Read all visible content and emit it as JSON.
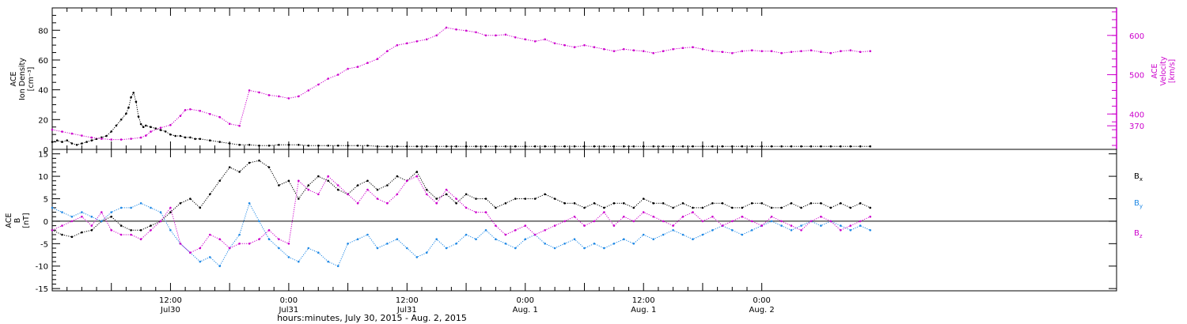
{
  "chart_data": [
    {
      "type": "scatter",
      "panel": "top",
      "ylabel_lines": [
        "ACE",
        "Ion Density",
        "[cm⁻³]"
      ],
      "y2label_lines": [
        "ACE",
        "Velocity",
        "[km/s]"
      ],
      "ylim": [
        0,
        95
      ],
      "y2lim": [
        310,
        670
      ],
      "yticks": [
        0,
        20,
        40,
        60,
        80
      ],
      "y2ticks": [
        400,
        500,
        600
      ],
      "y2ticklabels": [
        "400",
        "500",
        "600"
      ],
      "yticklabels": [
        "0",
        "20",
        "40",
        "60",
        "80"
      ],
      "y2ticks_extra": [
        {
          "value": 370,
          "label": "370"
        }
      ],
      "colors": {
        "density": "#000000",
        "velocity": "#cc00cc"
      },
      "series": [
        {
          "name": "",
          "axis": "left",
          "color": "#000000",
          "x": [
            0,
            1,
            2,
            3,
            4,
            5,
            6,
            7,
            8,
            9,
            10,
            11,
            12,
            13,
            14,
            15,
            15.5,
            16,
            16.5,
            17,
            17.5,
            18,
            18.5,
            19,
            20,
            21,
            22,
            23,
            24,
            25,
            26,
            27,
            28,
            29,
            30,
            32,
            34,
            36,
            38,
            40,
            42,
            44,
            46,
            48,
            50,
            52,
            54,
            56,
            58,
            60,
            62,
            64,
            66,
            68,
            70,
            72,
            74,
            76,
            78,
            80,
            82,
            84,
            86,
            88,
            90,
            92,
            94,
            96,
            98,
            100,
            102,
            104,
            106,
            108,
            110,
            112,
            114,
            116,
            118,
            120,
            122,
            124,
            126,
            128,
            130,
            132,
            134,
            136,
            138,
            140,
            142,
            144,
            146,
            148,
            150,
            152,
            154,
            156,
            158,
            160,
            162,
            164,
            166
          ],
          "y": [
            5,
            6,
            5,
            6,
            4,
            3,
            4,
            5,
            6,
            7,
            8,
            9,
            12,
            16,
            20,
            24,
            28,
            35,
            38,
            32,
            22,
            17,
            15,
            16,
            15,
            14,
            13,
            12,
            10,
            9,
            9,
            8,
            8,
            7,
            7,
            6,
            5,
            4,
            3,
            3,
            2.5,
            2.5,
            3,
            3,
            3,
            2.5,
            2.5,
            2.5,
            2.5,
            2.5,
            2.5,
            2.5,
            2,
            2,
            2,
            2,
            2,
            2,
            2,
            2,
            2,
            2,
            2,
            2,
            2,
            2,
            2,
            2,
            2,
            2,
            2,
            2,
            2,
            2,
            2,
            2,
            2,
            2,
            2,
            2,
            2,
            2,
            2,
            2,
            2,
            2,
            2,
            2,
            2,
            2,
            2,
            2,
            2,
            2,
            2,
            2,
            2,
            2,
            2,
            2,
            2,
            2,
            2
          ]
        },
        {
          "name": "",
          "axis": "right",
          "color": "#cc00cc",
          "x": [
            0,
            2,
            4,
            6,
            8,
            10,
            12,
            14,
            16,
            18,
            19,
            20,
            22,
            24,
            26,
            27,
            28,
            30,
            32,
            34,
            36,
            38,
            40,
            42,
            44,
            46,
            48,
            50,
            52,
            54,
            56,
            58,
            60,
            62,
            64,
            66,
            68,
            70,
            72,
            74,
            76,
            78,
            80,
            82,
            84,
            86,
            88,
            90,
            92,
            94,
            96,
            98,
            100,
            102,
            104,
            106,
            108,
            110,
            112,
            114,
            116,
            118,
            120,
            122,
            124,
            126,
            128,
            130,
            132,
            134,
            136,
            138,
            140,
            142,
            144,
            146,
            148,
            150,
            152,
            154,
            156,
            158,
            160,
            162,
            164,
            166
          ],
          "y": [
            360,
            355,
            350,
            345,
            340,
            337,
            335,
            335,
            337,
            340,
            345,
            355,
            365,
            372,
            395,
            410,
            412,
            408,
            400,
            392,
            375,
            370,
            460,
            455,
            448,
            445,
            440,
            445,
            460,
            475,
            490,
            500,
            515,
            520,
            530,
            540,
            560,
            575,
            580,
            585,
            590,
            600,
            620,
            615,
            612,
            608,
            600,
            600,
            602,
            595,
            590,
            585,
            590,
            580,
            575,
            570,
            575,
            570,
            565,
            560,
            565,
            562,
            560,
            555,
            560,
            565,
            568,
            570,
            565,
            560,
            558,
            555,
            560,
            562,
            560,
            560,
            555,
            558,
            560,
            562,
            558,
            555,
            560,
            562,
            558,
            560
          ]
        }
      ]
    },
    {
      "type": "scatter",
      "panel": "bottom",
      "ylabel_lines": [
        "ACE",
        "B",
        "[nT]"
      ],
      "ylim": [
        -15.5,
        16
      ],
      "yticks": [
        -15,
        -10,
        -5,
        0,
        5,
        10,
        15
      ],
      "yticklabels": [
        "-15",
        "-10",
        "-5",
        "0",
        "5",
        "10",
        "15"
      ],
      "zero_line": 0,
      "legend": {
        "position": "right",
        "entries": [
          {
            "main": "B",
            "sub": "x",
            "color": "#000000"
          },
          {
            "main": "B",
            "sub": "y",
            "color": "#1e88e5"
          },
          {
            "main": "B",
            "sub": "z",
            "color": "#cc00cc"
          }
        ]
      },
      "series": [
        {
          "name": "Bx",
          "color": "#000000",
          "x": [
            0,
            2,
            4,
            6,
            8,
            10,
            12,
            14,
            16,
            18,
            20,
            22,
            24,
            26,
            28,
            30,
            32,
            34,
            36,
            38,
            40,
            42,
            44,
            46,
            48,
            50,
            52,
            54,
            56,
            58,
            60,
            62,
            64,
            66,
            68,
            70,
            72,
            74,
            76,
            78,
            80,
            82,
            84,
            86,
            88,
            90,
            92,
            94,
            96,
            98,
            100,
            102,
            104,
            106,
            108,
            110,
            112,
            114,
            116,
            118,
            120,
            122,
            124,
            126,
            128,
            130,
            132,
            134,
            136,
            138,
            140,
            142,
            144,
            146,
            148,
            150,
            152,
            154,
            156,
            158,
            160,
            162,
            164,
            166
          ],
          "y": [
            -2,
            -3,
            -3.5,
            -2.5,
            -2,
            0,
            1,
            -1,
            -2,
            -2,
            -1,
            0,
            2,
            4,
            5,
            3,
            6,
            9,
            12,
            11,
            13,
            13.5,
            12,
            8,
            9,
            5,
            8,
            10,
            9,
            7,
            6,
            8,
            9,
            7,
            8,
            10,
            9,
            11,
            7,
            5,
            6,
            4,
            6,
            5,
            5,
            3,
            4,
            5,
            5,
            5,
            6,
            5,
            4,
            4,
            3,
            4,
            3,
            4,
            4,
            3,
            5,
            4,
            4,
            3,
            4,
            3,
            3,
            4,
            4,
            3,
            3,
            4,
            4,
            3,
            3,
            4,
            3,
            4,
            4,
            3,
            4,
            3,
            4,
            3
          ]
        },
        {
          "name": "By",
          "color": "#1e88e5",
          "x": [
            0,
            2,
            4,
            6,
            8,
            10,
            12,
            14,
            16,
            18,
            20,
            22,
            24,
            26,
            28,
            30,
            32,
            34,
            36,
            38,
            40,
            42,
            44,
            46,
            48,
            50,
            52,
            54,
            56,
            58,
            60,
            62,
            64,
            66,
            68,
            70,
            72,
            74,
            76,
            78,
            80,
            82,
            84,
            86,
            88,
            90,
            92,
            94,
            96,
            98,
            100,
            102,
            104,
            106,
            108,
            110,
            112,
            114,
            116,
            118,
            120,
            122,
            124,
            126,
            128,
            130,
            132,
            134,
            136,
            138,
            140,
            142,
            144,
            146,
            148,
            150,
            152,
            154,
            156,
            158,
            160,
            162,
            164,
            166
          ],
          "y": [
            3,
            2,
            1,
            2,
            1,
            0,
            2,
            3,
            3,
            4,
            3,
            2,
            -2,
            -5,
            -7,
            -9,
            -8,
            -10,
            -6,
            -3,
            4,
            0,
            -4,
            -6,
            -8,
            -9,
            -6,
            -7,
            -9,
            -10,
            -5,
            -4,
            -3,
            -6,
            -5,
            -4,
            -6,
            -8,
            -7,
            -4,
            -6,
            -5,
            -3,
            -4,
            -2,
            -4,
            -5,
            -6,
            -4,
            -3,
            -5,
            -6,
            -5,
            -4,
            -6,
            -5,
            -6,
            -5,
            -4,
            -5,
            -3,
            -4,
            -3,
            -2,
            -3,
            -4,
            -3,
            -2,
            -1,
            -2,
            -3,
            -2,
            -1,
            0,
            -1,
            -2,
            -1,
            0,
            -1,
            0,
            -1,
            -2,
            -1,
            -2
          ]
        },
        {
          "name": "Bz",
          "color": "#cc00cc",
          "x": [
            0,
            2,
            4,
            6,
            8,
            10,
            12,
            14,
            16,
            18,
            20,
            22,
            24,
            26,
            28,
            30,
            32,
            34,
            36,
            38,
            40,
            42,
            44,
            46,
            48,
            50,
            52,
            54,
            56,
            58,
            60,
            62,
            64,
            66,
            68,
            70,
            72,
            74,
            76,
            78,
            80,
            82,
            84,
            86,
            88,
            90,
            92,
            94,
            96,
            98,
            100,
            102,
            104,
            106,
            108,
            110,
            112,
            114,
            116,
            118,
            120,
            122,
            124,
            126,
            128,
            130,
            132,
            134,
            136,
            138,
            140,
            142,
            144,
            146,
            148,
            150,
            152,
            154,
            156,
            158,
            160,
            162,
            164,
            166
          ],
          "y": [
            -2,
            -1,
            0,
            1,
            -1,
            2,
            -2,
            -3,
            -3,
            -4,
            -2,
            0,
            3,
            -5,
            -7,
            -6,
            -3,
            -4,
            -6,
            -5,
            -5,
            -4,
            -2,
            -4,
            -5,
            9,
            7,
            6,
            10,
            8,
            6,
            4,
            7,
            5,
            4,
            6,
            9,
            10,
            6,
            4,
            7,
            5,
            3,
            2,
            2,
            -1,
            -3,
            -2,
            -1,
            -3,
            -2,
            -1,
            0,
            1,
            -1,
            0,
            2,
            -1,
            1,
            0,
            2,
            1,
            0,
            -1,
            1,
            2,
            0,
            1,
            -1,
            0,
            1,
            0,
            -1,
            1,
            0,
            -1,
            -2,
            0,
            1,
            0,
            -2,
            -1,
            0,
            1
          ]
        }
      ]
    }
  ],
  "xaxis": {
    "xlim": [
      0,
      216
    ],
    "ticks": [
      {
        "x": 24,
        "line1": "12:00",
        "line2": "Jul30"
      },
      {
        "x": 48,
        "line1": "0:00",
        "line2": "Jul31"
      },
      {
        "x": 72,
        "line1": "12:00",
        "line2": "Jul31"
      },
      {
        "x": 96,
        "line1": "0:00",
        "line2": "Aug. 1"
      },
      {
        "x": 120,
        "line1": "12:00",
        "line2": "Aug. 1"
      },
      {
        "x": 144,
        "line1": "0:00",
        "line2": "Aug. 2"
      }
    ],
    "label": "hours:minutes, July 30, 2015 - Aug.  2, 2015"
  }
}
